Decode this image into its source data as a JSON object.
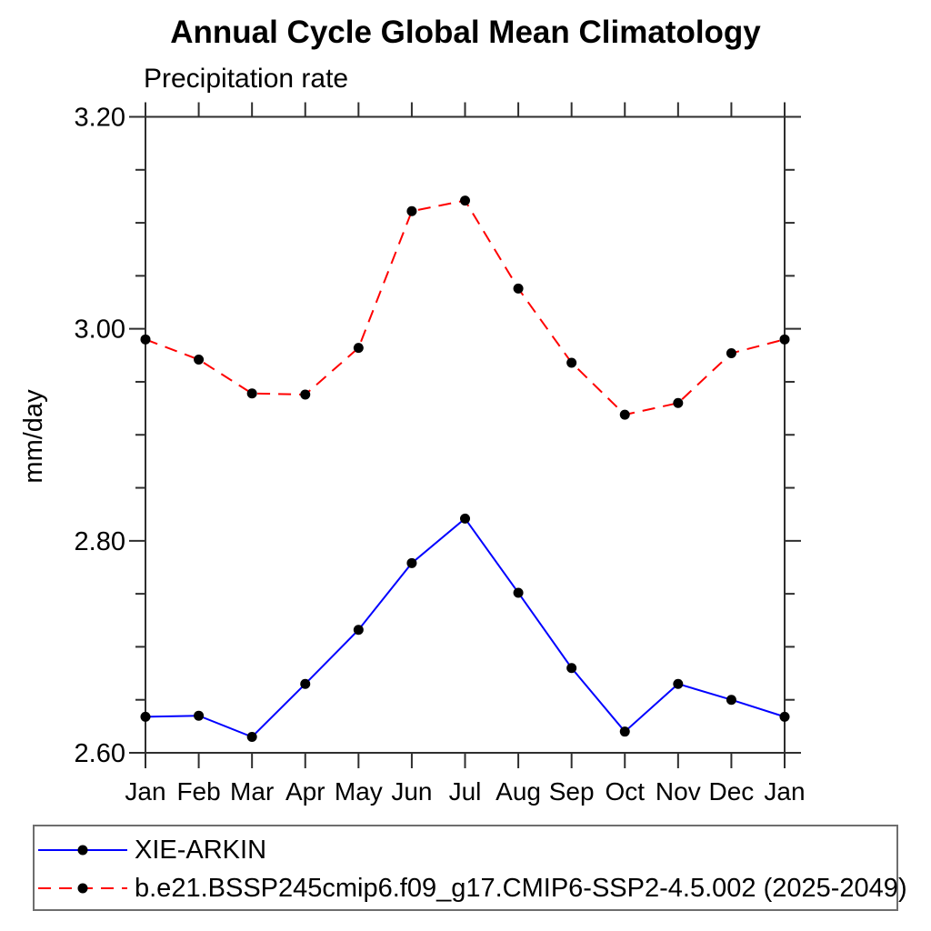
{
  "page": {
    "title": "Annual Cycle Global Mean Climatology",
    "subtitle": "Precipitation rate"
  },
  "chart_data": {
    "type": "line",
    "title": "Annual Cycle Global Mean Climatology",
    "subtitle": "Precipitation rate",
    "ylabel": "mm/day",
    "xlabel": "",
    "categories": [
      "Jan",
      "Feb",
      "Mar",
      "Apr",
      "May",
      "Jun",
      "Jul",
      "Aug",
      "Sep",
      "Oct",
      "Nov",
      "Dec",
      "Jan"
    ],
    "ylim": [
      2.6,
      3.2
    ],
    "y_major_ticks": [
      2.6,
      2.8,
      3.0,
      3.2
    ],
    "y_major_tick_labels": [
      "2.60",
      "2.80",
      "3.00",
      "3.20"
    ],
    "y_minor_step": 0.05,
    "grid": false,
    "legend_position": "bottom-box",
    "axis_color": "#2e2e2e",
    "marker_color": "#000000",
    "series": [
      {
        "name": "XIE-ARKIN",
        "color": "#0000ff",
        "line_style": "solid",
        "marker": "filled-circle",
        "values": [
          2.634,
          2.635,
          2.615,
          2.665,
          2.716,
          2.779,
          2.821,
          2.751,
          2.68,
          2.62,
          2.665,
          2.65,
          2.634
        ]
      },
      {
        "name": "b.e21.BSSP245cmip6.f09_g17.CMIP6-SSP2-4.5.002 (2025-2049)",
        "color": "#ff0000",
        "line_style": "dashed",
        "marker": "filled-circle",
        "values": [
          2.99,
          2.971,
          2.939,
          2.938,
          2.982,
          3.111,
          3.121,
          3.038,
          2.968,
          2.919,
          2.93,
          2.977,
          2.99
        ]
      }
    ]
  },
  "legend": {
    "items": [
      {
        "label": "XIE-ARKIN"
      },
      {
        "label": "b.e21.BSSP245cmip6.f09_g17.CMIP6-SSP2-4.5.002 (2025-2049)"
      }
    ]
  }
}
